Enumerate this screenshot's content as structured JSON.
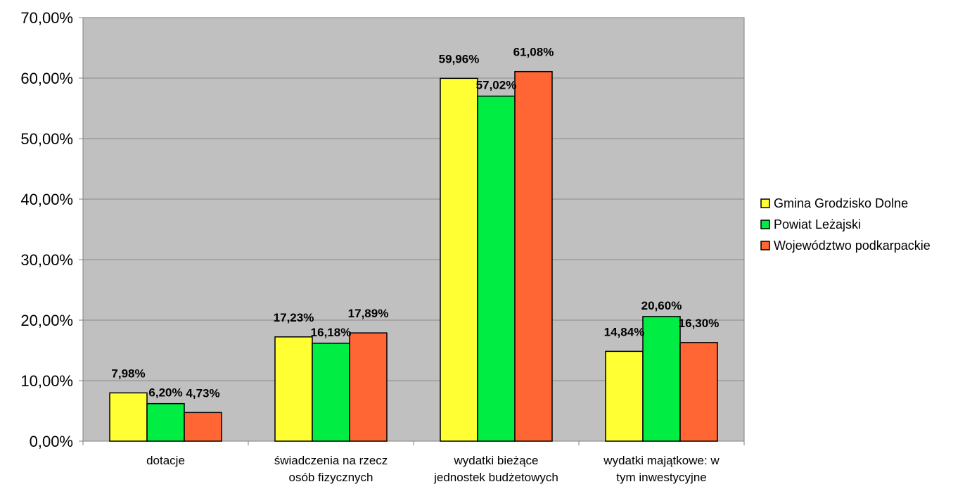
{
  "chart_data": {
    "type": "bar",
    "categories": [
      [
        "dotacje"
      ],
      [
        "świadczenia na rzecz",
        "osób fizycznych"
      ],
      [
        "wydatki bieżące",
        "jednostek budżetowych"
      ],
      [
        "wydatki majątkowe: w",
        "tym inwestycyjne"
      ]
    ],
    "series": [
      {
        "name": "Gmina Grodzisko Dolne",
        "color": "#ffff33",
        "values": [
          7.98,
          17.23,
          59.96,
          14.84
        ],
        "labels": [
          "7,98%",
          "17,23%",
          "59,96%",
          "14,84%"
        ]
      },
      {
        "name": "Powiat Leżajski",
        "color": "#00ee44",
        "values": [
          6.2,
          16.18,
          57.02,
          20.6
        ],
        "labels": [
          "6,20%",
          "16,18%",
          "57,02%",
          "20,60%"
        ]
      },
      {
        "name": "Województwo podkarpackie",
        "color": "#ff6633",
        "values": [
          4.73,
          17.89,
          61.08,
          16.3
        ],
        "labels": [
          "4,73%",
          "17,89%",
          "61,08%",
          "16,30%"
        ]
      }
    ],
    "yticks": [
      "0,00%",
      "10,00%",
      "20,00%",
      "30,00%",
      "40,00%",
      "50,00%",
      "60,00%",
      "70,00%"
    ],
    "ylim": [
      0,
      70
    ],
    "grid": true,
    "legend_position": "right",
    "plot_background": "#c0c0c0"
  }
}
